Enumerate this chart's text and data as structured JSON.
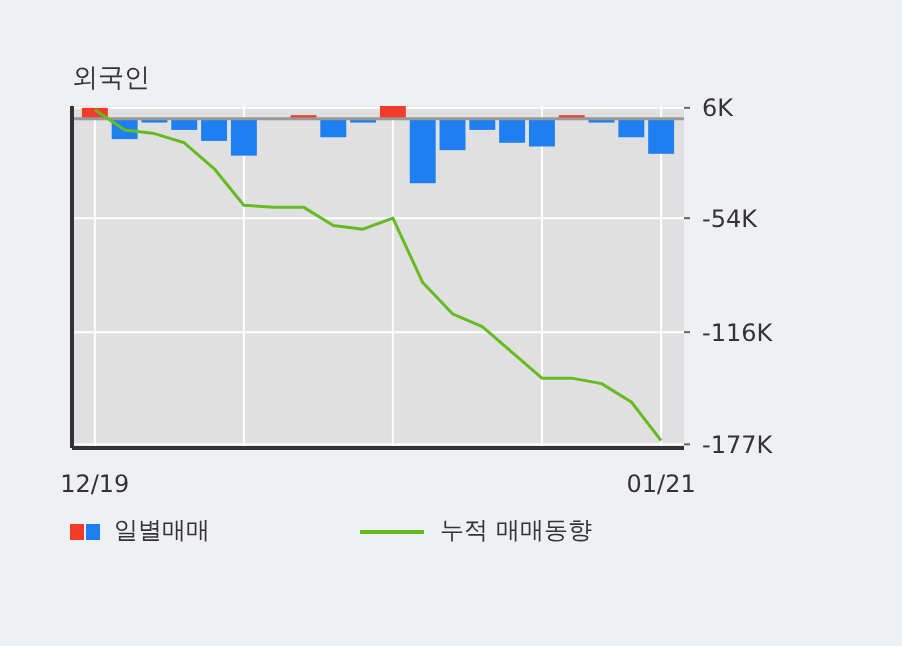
{
  "chart_data": {
    "type": "bar",
    "title": "외국인",
    "categories": [
      "12/19",
      null,
      null,
      null,
      null,
      null,
      null,
      null,
      null,
      null,
      null,
      null,
      null,
      null,
      null,
      null,
      null,
      null,
      null,
      "01/21"
    ],
    "series": [
      {
        "name": "일별매매",
        "values": [
          6000,
          -11000,
          -2000,
          -6000,
          -12000,
          -20000,
          0,
          2000,
          -10000,
          -2000,
          7000,
          -35000,
          -17000,
          -6000,
          -13000,
          -15000,
          2000,
          -2000,
          -10000,
          -19000
        ],
        "colors": [
          "#f03c28",
          "#1e7ff0",
          "#1e7ff0",
          "#1e7ff0",
          "#1e7ff0",
          "#1e7ff0",
          "#1e7ff0",
          "#f03c28",
          "#1e7ff0",
          "#1e7ff0",
          "#f03c28",
          "#1e7ff0",
          "#1e7ff0",
          "#1e7ff0",
          "#1e7ff0",
          "#1e7ff0",
          "#f03c28",
          "#1e7ff0",
          "#1e7ff0",
          "#1e7ff0"
        ]
      },
      {
        "name": "누적 매매동향",
        "type": "line",
        "color": "#66bb22",
        "values": [
          5000,
          -6000,
          -8000,
          -13000,
          -27000,
          -47000,
          -48000,
          -48000,
          -58000,
          -60000,
          -54000,
          -89000,
          -106000,
          -113000,
          -127000,
          -141000,
          -141000,
          -144000,
          -154000,
          -175000
        ]
      }
    ],
    "ylim": [
      -179000,
      7000
    ],
    "yticks": [
      {
        "value": 6000,
        "label": "6K"
      },
      {
        "value": -54000,
        "label": "-54K"
      },
      {
        "value": -116000,
        "label": "-116K"
      },
      {
        "value": -177000,
        "label": "-177K"
      }
    ],
    "grid": true,
    "legend": "bottom",
    "marker": "none",
    "line_style": "solid"
  }
}
